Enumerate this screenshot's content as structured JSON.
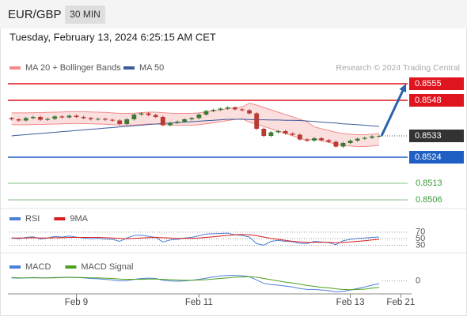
{
  "header": {
    "symbol": "EUR/GBP",
    "timeframe": "30 MIN",
    "timestamp": "Tuesday, February 13, 2024 6:25:15 AM CET"
  },
  "chart_data": [
    {
      "type": "candlestick",
      "credit": "Research © 2024 Trading Central",
      "legend": "top-left",
      "up_color": "#3d7a35",
      "down_color": "#b83a32",
      "categories": [
        null,
        null,
        null,
        null,
        null,
        null,
        null,
        null,
        null,
        "Feb 9",
        null,
        null,
        null,
        null,
        null,
        null,
        null,
        null,
        null,
        null,
        null,
        null,
        null,
        null,
        null,
        null,
        "Feb 11",
        null,
        null,
        null,
        null,
        null,
        null,
        null,
        null,
        null,
        null,
        null,
        null,
        null,
        null,
        null,
        null,
        null,
        null,
        null,
        null,
        "Feb 13",
        null,
        null,
        null,
        null,
        null,
        null,
        "Feb 21",
        null
      ],
      "open": [
        0.85405,
        0.854,
        0.85395,
        0.85405,
        0.8541,
        0.85398,
        0.85402,
        0.85412,
        0.85408,
        0.85415,
        0.8541,
        0.85405,
        0.854,
        0.85402,
        0.85398,
        0.85395,
        0.8538,
        0.854,
        0.8542,
        0.85425,
        0.85418,
        0.8541,
        0.85375,
        0.85385,
        0.8539,
        0.854,
        0.85405,
        0.8542,
        0.85435,
        0.8544,
        0.85445,
        0.8545,
        0.85442,
        0.85438,
        0.85425,
        0.8536,
        0.8533,
        0.85345,
        0.8535,
        0.8534,
        0.85335,
        0.85315,
        0.8531,
        0.8532,
        0.85312,
        0.85305,
        0.85285,
        0.853,
        0.8531,
        0.85318,
        0.85322,
        0.85328,
        null,
        null,
        null,
        null
      ],
      "high": [
        0.8541,
        0.85405,
        0.8541,
        0.85415,
        0.85415,
        0.85407,
        0.85417,
        0.85417,
        0.8542,
        0.8542,
        0.85415,
        0.8541,
        0.85407,
        0.85407,
        0.85403,
        0.854,
        0.85405,
        0.85425,
        0.8543,
        0.8543,
        0.85423,
        0.85415,
        0.8539,
        0.85395,
        0.85405,
        0.8541,
        0.85425,
        0.8544,
        0.85445,
        0.8545,
        0.85455,
        0.85455,
        0.85447,
        0.85443,
        0.8543,
        0.85365,
        0.8535,
        0.85355,
        0.85355,
        0.85345,
        0.8534,
        0.8532,
        0.85325,
        0.85325,
        0.85317,
        0.8531,
        0.85305,
        0.85315,
        0.85323,
        0.85327,
        0.85333,
        0.85335,
        null,
        null,
        null,
        null
      ],
      "low": [
        0.85395,
        0.8539,
        0.8539,
        0.854,
        0.85393,
        0.85393,
        0.85397,
        0.85403,
        0.85403,
        0.85405,
        0.854,
        0.85395,
        0.85395,
        0.85393,
        0.8539,
        0.85375,
        0.85375,
        0.85395,
        0.85415,
        0.85413,
        0.85405,
        0.8537,
        0.8537,
        0.8538,
        0.85385,
        0.85395,
        0.854,
        0.85415,
        0.8543,
        0.85435,
        0.8544,
        0.85437,
        0.85433,
        0.8542,
        0.85355,
        0.85325,
        0.85325,
        0.8534,
        0.85335,
        0.8533,
        0.8531,
        0.85305,
        0.85305,
        0.85307,
        0.853,
        0.8528,
        0.8528,
        0.85295,
        0.85305,
        0.85313,
        0.85317,
        0.85323,
        null,
        null,
        null,
        null
      ],
      "close": [
        0.854,
        0.85395,
        0.85405,
        0.8541,
        0.85398,
        0.85402,
        0.85412,
        0.85408,
        0.85415,
        0.8541,
        0.85405,
        0.854,
        0.85402,
        0.85398,
        0.85395,
        0.8538,
        0.854,
        0.8542,
        0.85425,
        0.85418,
        0.8541,
        0.85375,
        0.85385,
        0.8539,
        0.854,
        0.85405,
        0.8542,
        0.85435,
        0.8544,
        0.85445,
        0.8545,
        0.85442,
        0.85438,
        0.85425,
        0.8536,
        0.8533,
        0.85345,
        0.8535,
        0.8534,
        0.85335,
        0.85315,
        0.8531,
        0.8532,
        0.85312,
        0.85305,
        0.85285,
        0.853,
        0.8531,
        0.85318,
        0.85322,
        0.85328,
        0.8533,
        null,
        null,
        null,
        null
      ],
      "series": [
        {
          "name": "MA 20 + Bollinger Bands",
          "color": "#f28b8b",
          "upper": [
            0.85427,
            0.85427,
            0.85427,
            0.85428,
            0.85428,
            0.85429,
            0.8543,
            0.85431,
            0.85432,
            0.85432,
            0.85432,
            0.85431,
            0.8543,
            0.85429,
            0.85427,
            0.85425,
            0.85425,
            0.85426,
            0.85428,
            0.8543,
            0.8543,
            0.85428,
            0.85426,
            0.85425,
            0.85425,
            0.85425,
            0.85427,
            0.85431,
            0.85435,
            0.8544,
            0.85445,
            0.85449,
            0.85452,
            0.85468,
            0.8546,
            0.8545,
            0.8544,
            0.8543,
            0.8542,
            0.8541,
            0.854,
            0.8539,
            0.85368,
            0.8536,
            0.85353,
            0.85345,
            0.8534,
            0.85337,
            0.85335,
            0.85335,
            0.85337,
            0.8534,
            null,
            null,
            null,
            null
          ],
          "lower": [
            0.85377,
            0.85377,
            0.85377,
            0.85378,
            0.85378,
            0.85379,
            0.8538,
            0.85381,
            0.85382,
            0.85382,
            0.85382,
            0.85381,
            0.8538,
            0.85379,
            0.85377,
            0.85375,
            0.85375,
            0.85376,
            0.85378,
            0.8538,
            0.8538,
            0.85378,
            0.85376,
            0.85375,
            0.85375,
            0.85375,
            0.85377,
            0.85381,
            0.85385,
            0.8539,
            0.85395,
            0.85399,
            0.85402,
            0.85388,
            0.8538,
            0.8537,
            0.8536,
            0.8535,
            0.8534,
            0.8533,
            0.8532,
            0.8531,
            0.85318,
            0.8531,
            0.85303,
            0.85295,
            0.8529,
            0.85287,
            0.85285,
            0.85285,
            0.85287,
            0.8529,
            null,
            null,
            null,
            null
          ]
        },
        {
          "name": "MA 50",
          "color": "#3b5b9a",
          "values": [
            0.8533,
            0.85333,
            0.85335,
            0.85338,
            0.8534,
            0.85343,
            0.85345,
            0.85348,
            0.8535,
            0.85353,
            0.85355,
            0.85358,
            0.8536,
            0.85363,
            0.85365,
            0.85368,
            0.8537,
            0.85373,
            0.85375,
            0.85378,
            0.8538,
            0.85382,
            0.85384,
            0.85386,
            0.85388,
            0.8539,
            0.85392,
            0.85394,
            0.85396,
            0.85398,
            0.854,
            0.854,
            0.854,
            0.85399,
            0.85398,
            0.85398,
            0.85397,
            0.85397,
            0.85396,
            0.85396,
            0.85395,
            0.85393,
            0.85391,
            0.85388,
            0.85386,
            0.85384,
            0.85381,
            0.85379,
            0.85377,
            0.85375,
            0.85372,
            0.8537,
            null,
            null,
            null,
            null
          ]
        }
      ],
      "levels": [
        {
          "value": 0.8555,
          "color": "#e0141e",
          "style": "box"
        },
        {
          "value": 0.8548,
          "color": "#e0141e",
          "style": "box"
        },
        {
          "value": 0.8533,
          "color": "#333333",
          "style": "current"
        },
        {
          "value": 0.8524,
          "color": "#1f5fc4",
          "style": "box"
        },
        {
          "value": 0.8513,
          "color": "#3c9a3c",
          "style": "text"
        },
        {
          "value": 0.8506,
          "color": "#3c9a3c",
          "style": "text"
        }
      ],
      "ylim": [
        0.8503,
        0.8558
      ]
    },
    {
      "type": "line",
      "series": [
        {
          "name": "RSI",
          "color": "#4d7fd6",
          "values": [
            52,
            50,
            54,
            56,
            49,
            52,
            57,
            55,
            58,
            55,
            52,
            50,
            51,
            49,
            48,
            42,
            52,
            60,
            61,
            57,
            54,
            40,
            46,
            48,
            52,
            54,
            59,
            64,
            65,
            66,
            67,
            62,
            60,
            55,
            35,
            30,
            42,
            45,
            42,
            41,
            36,
            35,
            42,
            40,
            38,
            32,
            44,
            48,
            51,
            52,
            54,
            55,
            null,
            null,
            null,
            null
          ]
        },
        {
          "name": "9MA",
          "color": "#d81e1e",
          "values": [
            52,
            52,
            52,
            53,
            52,
            52,
            53,
            53,
            54,
            54,
            54,
            54,
            54,
            53,
            52,
            51,
            50,
            51,
            52,
            53,
            54,
            53,
            52,
            51,
            51,
            51,
            52,
            54,
            56,
            58,
            60,
            62,
            63,
            62,
            59,
            55,
            51,
            48,
            45,
            42,
            40,
            39,
            39,
            39,
            39,
            38,
            39,
            40,
            42,
            44,
            46,
            48,
            null,
            null,
            null,
            null
          ]
        }
      ],
      "hlines": [
        70,
        50,
        30
      ],
      "ylim": [
        12,
        96
      ]
    },
    {
      "type": "line",
      "series": [
        {
          "name": "MACD",
          "color": "#4d7fd6",
          "values": [
            1.0,
            0.9,
            1.0,
            1.1,
            1.0,
            1.0,
            1.1,
            1.1,
            1.2,
            1.1,
            1.0,
            0.8,
            0.7,
            0.5,
            0.3,
            0.0,
            0.1,
            0.5,
            0.8,
            0.9,
            0.8,
            0.2,
            0.0,
            -0.1,
            0.0,
            0.2,
            0.5,
            0.9,
            1.3,
            1.6,
            1.8,
            1.8,
            1.7,
            1.4,
            0.3,
            -0.8,
            -1.2,
            -1.4,
            -1.7,
            -2.0,
            -2.5,
            -2.8,
            -2.8,
            -3.0,
            -3.2,
            -3.6,
            -3.4,
            -3.0,
            -2.5,
            -2.0,
            -1.4,
            -0.9,
            null,
            null,
            null,
            null
          ]
        },
        {
          "name": "MACD Signal",
          "color": "#4ea01e",
          "values": [
            1.1,
            1.0,
            1.0,
            1.0,
            1.0,
            1.0,
            1.0,
            1.1,
            1.1,
            1.1,
            1.1,
            1.0,
            1.0,
            0.9,
            0.8,
            0.6,
            0.5,
            0.5,
            0.5,
            0.6,
            0.6,
            0.5,
            0.4,
            0.3,
            0.2,
            0.2,
            0.3,
            0.4,
            0.6,
            0.8,
            1.0,
            1.2,
            1.3,
            1.4,
            1.2,
            0.8,
            0.4,
            0.0,
            -0.4,
            -0.7,
            -1.1,
            -1.5,
            -1.8,
            -2.1,
            -2.3,
            -2.6,
            -2.8,
            -2.9,
            -2.8,
            -2.7,
            -2.4,
            -2.1,
            null,
            null,
            null,
            null
          ]
        }
      ],
      "hlines": [
        0
      ],
      "ylim": [
        -4,
        3
      ]
    }
  ]
}
